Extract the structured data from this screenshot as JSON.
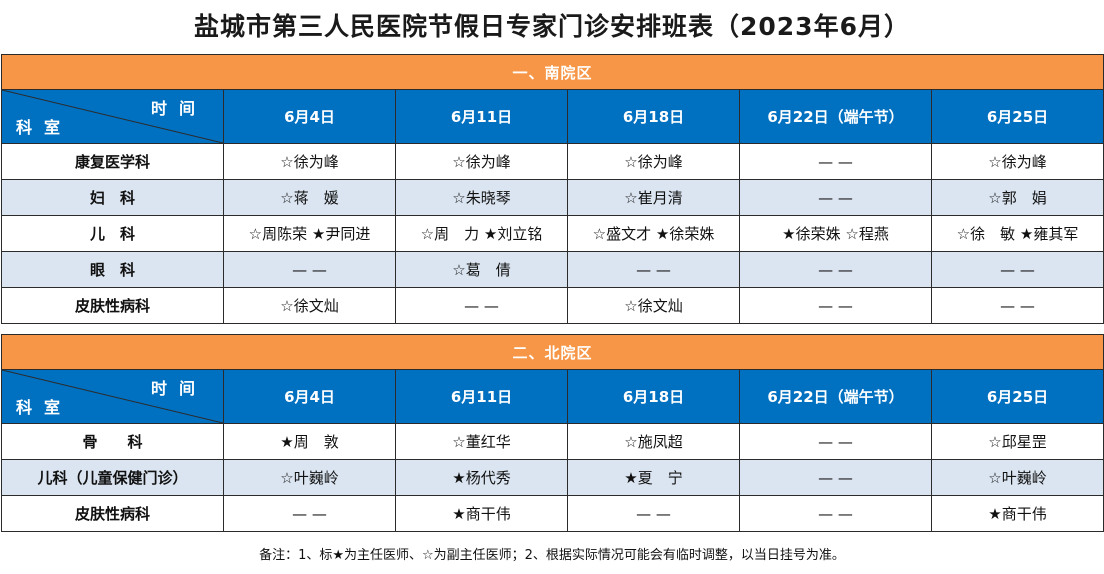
{
  "title": "盐城市第三人民医院节假日专家门诊安排班表（2023年6月）",
  "corner_time": "时间",
  "corner_dept": "科室",
  "sections": [
    {
      "name": "一、南院区",
      "dates": [
        "6月4日",
        "6月11日",
        "6月18日",
        "6月22日（端午节）",
        "6月25日"
      ],
      "rows": [
        {
          "dept": "康复医学科",
          "cells": [
            "☆徐为峰",
            "☆徐为峰",
            "☆徐为峰",
            "— —",
            "☆徐为峰"
          ]
        },
        {
          "dept": "妇　科",
          "cells": [
            "☆蒋　媛",
            "☆朱晓琴",
            "☆崔月清",
            "— —",
            "☆郭　娟"
          ]
        },
        {
          "dept": "儿　科",
          "cells": [
            "☆周陈荣 ★尹同进",
            "☆周　力 ★刘立铭",
            "☆盛文才 ★徐荣姝",
            "★徐荣姝 ☆程燕",
            "☆徐　敏 ★雍其军"
          ]
        },
        {
          "dept": "眼　科",
          "cells": [
            "— —",
            "☆葛　倩",
            "— —",
            "— —",
            "— —"
          ]
        },
        {
          "dept": "皮肤性病科",
          "cells": [
            "☆徐文灿",
            "— —",
            "☆徐文灿",
            "— —",
            "— —"
          ]
        }
      ]
    },
    {
      "name": "二、北院区",
      "dates": [
        "6月4日",
        "6月11日",
        "6月18日",
        "6月22日（端午节）",
        "6月25日"
      ],
      "rows": [
        {
          "dept": "骨　　科",
          "cells": [
            "★周　敦",
            "☆董红华",
            "☆施凤超",
            "— —",
            "☆邱星罡"
          ]
        },
        {
          "dept": "儿科（儿童保健门诊）",
          "cells": [
            "☆叶巍岭",
            "★杨代秀",
            "★夏　宁",
            "— —",
            "☆叶巍岭"
          ]
        },
        {
          "dept": "皮肤性病科",
          "cells": [
            "— —",
            "★商干伟",
            "— —",
            "— —",
            "★商干伟"
          ]
        }
      ]
    }
  ],
  "note": "备注：1、标★为主任医师、☆为副主任医师；2、根据实际情况可能会有临时调整，以当日挂号为准。",
  "colors": {
    "section_bar": "#f79646",
    "header_blue": "#0070c0",
    "stripe": "#dbe5f1",
    "border": "#2b2b2b"
  }
}
